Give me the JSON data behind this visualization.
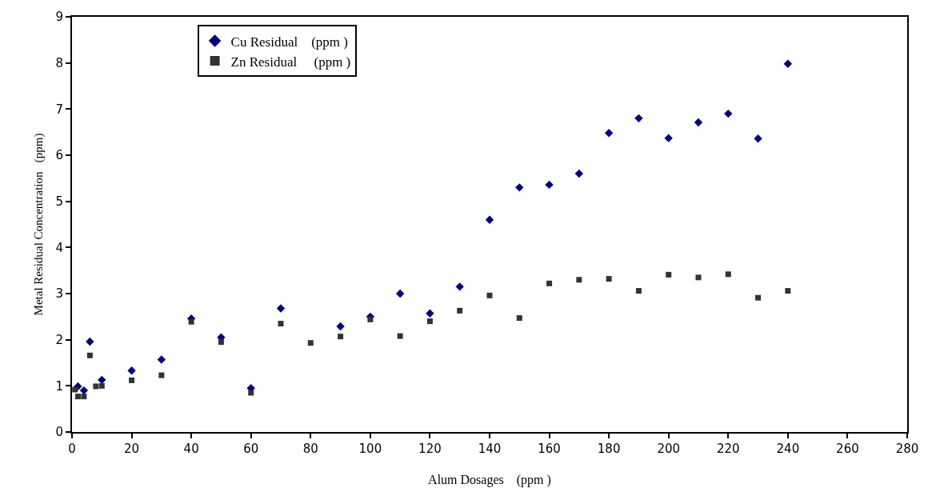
{
  "chart_data": {
    "type": "scatter",
    "xlabel": "Alum Dosages    (ppm )",
    "ylabel": "Metal Residual Concentration   (ppm)",
    "xlim": [
      0,
      280
    ],
    "xticks": [
      0,
      20,
      40,
      60,
      80,
      100,
      120,
      140,
      160,
      180,
      200,
      220,
      240,
      260,
      280
    ],
    "ylim": [
      0,
      9
    ],
    "yticks": [
      0,
      1,
      2,
      3,
      4,
      5,
      6,
      7,
      8,
      9
    ],
    "legend": "top left",
    "series": [
      {
        "name": "Cu Residual    (ppm )",
        "color": "#000080",
        "marker": "diamond",
        "x": [
          2,
          4,
          6,
          8,
          10,
          20,
          30,
          40,
          50,
          60,
          70,
          80,
          90,
          100,
          110,
          120,
          130,
          140,
          150,
          160,
          170,
          180,
          190,
          200,
          210,
          220,
          230,
          240
        ],
        "values": [
          0.99,
          0.9,
          1.96,
          null,
          1.13,
          1.33,
          1.57,
          2.46,
          2.05,
          0.95,
          2.68,
          null,
          2.29,
          2.5,
          3.0,
          2.57,
          3.15,
          4.6,
          5.3,
          5.36,
          5.6,
          6.48,
          6.8,
          6.37,
          6.71,
          6.9,
          6.36,
          7.98
        ]
      },
      {
        "name": "Zn Residual     (ppm )",
        "color": "#333333",
        "marker": "square",
        "x": [
          1,
          2,
          4,
          6,
          8,
          10,
          20,
          30,
          40,
          50,
          60,
          70,
          80,
          90,
          100,
          110,
          120,
          130,
          140,
          150,
          160,
          170,
          180,
          190,
          200,
          210,
          220,
          230,
          240
        ],
        "values": [
          0.92,
          0.77,
          0.77,
          1.66,
          0.99,
          1.0,
          1.12,
          1.23,
          2.39,
          1.95,
          0.85,
          2.35,
          1.93,
          2.07,
          2.44,
          2.08,
          2.4,
          2.63,
          2.96,
          2.47,
          3.22,
          3.3,
          3.32,
          3.06,
          3.41,
          3.35,
          3.42,
          2.91,
          3.06
        ]
      }
    ]
  }
}
